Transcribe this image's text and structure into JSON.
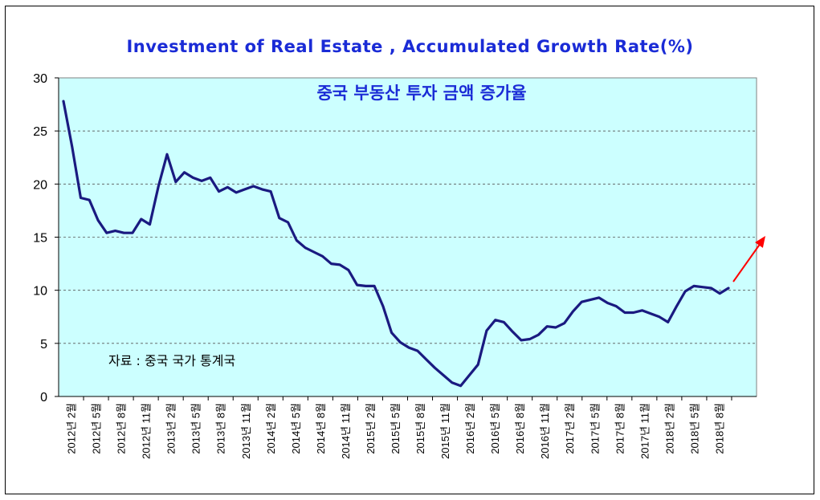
{
  "chart_data": {
    "type": "line",
    "title": "Investment of Real Estate , Accumulated Growth Rate(%)",
    "inner_title": "중국 부동산 투자 금액 증가율",
    "source_note": "자료 : 중국 국가 통계국",
    "ylim": [
      0,
      30
    ],
    "y_ticks": [
      0,
      5,
      10,
      15,
      20,
      25,
      30
    ],
    "x_tick_labels": [
      "2012년 2월",
      "2012년 5월",
      "2012년 8월",
      "2012년 11월",
      "2013년 2월",
      "2013년 5월",
      "2013년 8월",
      "2013년 11월",
      "2014년 2월",
      "2014년 5월",
      "2014년 8월",
      "2014년 11월",
      "2015년 2월",
      "2015년 5월",
      "2015년 8월",
      "2015년 11월",
      "2016년 2월",
      "2016년 5월",
      "2016년 8월",
      "2016년 11월",
      "2017년 2월",
      "2017년 5월",
      "2017년 8월",
      "2017년 11월",
      "2018년 2월",
      "2018년 5월",
      "2018년 8월"
    ],
    "series": [
      {
        "name": "Accumulated Growth Rate",
        "color": "#1a1a80",
        "values": [
          27.8,
          23.5,
          18.7,
          18.5,
          16.6,
          15.4,
          15.6,
          15.4,
          15.4,
          16.7,
          16.2,
          19.8,
          22.8,
          20.2,
          21.1,
          20.6,
          20.3,
          20.6,
          19.3,
          19.7,
          19.2,
          19.5,
          19.8,
          19.5,
          19.3,
          16.8,
          16.4,
          14.7,
          14.0,
          13.6,
          13.2,
          12.5,
          12.4,
          11.9,
          10.5,
          10.4,
          10.4,
          8.5,
          6.0,
          5.1,
          4.6,
          4.3,
          3.5,
          2.7,
          2.0,
          1.3,
          1.0,
          2.0,
          3.0,
          6.2,
          7.2,
          7.0,
          6.1,
          5.3,
          5.4,
          5.8,
          6.6,
          6.5,
          6.9,
          8.0,
          8.9,
          9.1,
          9.3,
          8.8,
          8.5,
          7.9,
          7.9,
          8.1,
          7.8,
          7.5,
          7.0,
          8.5,
          9.9,
          10.4,
          10.3,
          10.2,
          9.7,
          10.2
        ]
      }
    ],
    "arrow_color": "#ff0000",
    "plot_bg": "#ccffff"
  }
}
